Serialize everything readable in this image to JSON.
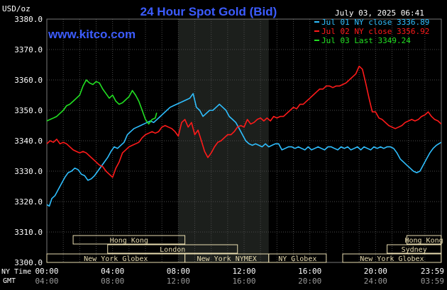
{
  "chart_data": {
    "type": "line",
    "title": "24 Hour Spot Gold (Bid)",
    "site": "www.kitco.com",
    "units_label": "USD/oz",
    "date_label": "July 03, 2025 06:41",
    "ylim": [
      3300,
      3380
    ],
    "y_ticks": [
      "3380.0",
      "3370.0",
      "3360.0",
      "3350.0",
      "3340.0",
      "3330.0",
      "3320.0",
      "3310.0",
      "3300.0"
    ],
    "x_ticks_ny": [
      "00:00",
      "04:00",
      "08:00",
      "12:00",
      "16:00",
      "20:00",
      "23:59"
    ],
    "x_ticks_gmt": [
      "04:00",
      "08:00",
      "12:00",
      "16:00",
      "20:00",
      "24:00",
      "03:59"
    ],
    "x_row_labels": {
      "ny": "NY Time",
      "gmt": "GMT"
    },
    "highlight_hours": [
      8.0,
      13.5
    ],
    "colors": {
      "background": "#000000",
      "plot": "#000000",
      "highlight": "#1c1f1c",
      "grid": "#4a4a4a",
      "axis_text": "#ffffff",
      "title": "#3c5cff",
      "market_box": "#e8dcb0",
      "market_text": "#e8dcb0"
    },
    "legend": {
      "placement": "top-right"
    },
    "series": [
      {
        "name": "Jul 01 NY close 3336.89",
        "color": "#2fbfff",
        "x": [
          0,
          0.15,
          0.3,
          0.5,
          0.7,
          0.9,
          1.1,
          1.3,
          1.5,
          1.7,
          1.9,
          2.1,
          2.3,
          2.5,
          2.7,
          2.9,
          3.1,
          3.3,
          3.5,
          3.7,
          3.9,
          4.1,
          4.3,
          4.5,
          4.7,
          4.9,
          5.1,
          5.3,
          5.5,
          5.7,
          5.9,
          6.1,
          6.3,
          6.5,
          6.7,
          6.9,
          7.1,
          7.3,
          7.5,
          7.7,
          7.9,
          8.1,
          8.3,
          8.5,
          8.7,
          8.9,
          9.1,
          9.3,
          9.5,
          9.7,
          9.9,
          10.1,
          10.3,
          10.5,
          10.7,
          10.9,
          11.1,
          11.3,
          11.5,
          11.7,
          11.9,
          12.1,
          12.3,
          12.5,
          12.7,
          12.9,
          13.1,
          13.3,
          13.5,
          13.7,
          13.9,
          14.1,
          14.3,
          14.5,
          14.7,
          14.9,
          15.1,
          15.3,
          15.5,
          15.7,
          15.9,
          16.1,
          16.3,
          16.5,
          16.7,
          16.9,
          17.1,
          17.3,
          17.5,
          17.7,
          17.9,
          18.1,
          18.3,
          18.5,
          18.7,
          18.9,
          19.1,
          19.3,
          19.5,
          19.7,
          19.9,
          20.1,
          20.3,
          20.5,
          20.7,
          20.9,
          21.1,
          21.3,
          21.5,
          21.7,
          21.9,
          22.1,
          22.3,
          22.5,
          22.7,
          22.9,
          23.1,
          23.3,
          23.5,
          23.7,
          23.99
        ],
        "values": [
          3319,
          3318.5,
          3321,
          3322,
          3324,
          3326,
          3328,
          3329.5,
          3330,
          3331,
          3330.5,
          3329,
          3328.5,
          3327,
          3327.5,
          3328.5,
          3330,
          3331.5,
          3333,
          3334.5,
          3336.5,
          3338,
          3337.5,
          3338.5,
          3339.5,
          3342,
          3343,
          3344,
          3344.5,
          3345,
          3345.5,
          3346,
          3346.5,
          3346,
          3347,
          3348,
          3349,
          3350,
          3351,
          3351.5,
          3352,
          3352.5,
          3353,
          3353.5,
          3354,
          3355.5,
          3351,
          3350,
          3348,
          3349,
          3350,
          3350,
          3351,
          3352,
          3351,
          3350,
          3348,
          3347,
          3346,
          3344,
          3342,
          3340,
          3339,
          3338.5,
          3339,
          3338.5,
          3338,
          3339,
          3338,
          3338.5,
          3339,
          3339,
          3337,
          3337.5,
          3338,
          3338,
          3337.5,
          3338,
          3337.5,
          3337,
          3338,
          3337,
          3337.5,
          3338,
          3337.5,
          3337,
          3338,
          3338,
          3337.5,
          3337,
          3338,
          3337.5,
          3338,
          3337,
          3337.5,
          3338,
          3337,
          3338,
          3337.5,
          3337,
          3338,
          3337.5,
          3338,
          3337.5,
          3338,
          3338,
          3337.5,
          3336,
          3334,
          3333,
          3332,
          3331,
          3330,
          3329.5,
          3330,
          3332,
          3334,
          3336,
          3337.5,
          3338.5,
          3339.5
        ]
      },
      {
        "name": "Jul 02 NY close 3356.92",
        "color": "#ff1a1a",
        "x": [
          0,
          0.2,
          0.4,
          0.6,
          0.8,
          1.0,
          1.2,
          1.4,
          1.6,
          1.8,
          2.0,
          2.2,
          2.4,
          2.6,
          2.8,
          3.0,
          3.2,
          3.4,
          3.6,
          3.8,
          4.0,
          4.2,
          4.4,
          4.6,
          4.8,
          5.0,
          5.2,
          5.4,
          5.6,
          5.8,
          6.0,
          6.2,
          6.4,
          6.6,
          6.8,
          7.0,
          7.2,
          7.4,
          7.6,
          7.8,
          8.0,
          8.2,
          8.4,
          8.6,
          8.8,
          9.0,
          9.2,
          9.4,
          9.6,
          9.8,
          10.0,
          10.2,
          10.4,
          10.6,
          10.8,
          11.0,
          11.2,
          11.4,
          11.6,
          11.8,
          12.0,
          12.2,
          12.4,
          12.6,
          12.8,
          13.0,
          13.2,
          13.4,
          13.6,
          13.8,
          14.0,
          14.2,
          14.4,
          14.6,
          14.8,
          15.0,
          15.2,
          15.4,
          15.6,
          15.8,
          16.0,
          16.2,
          16.4,
          16.6,
          16.8,
          17.0,
          17.2,
          17.4,
          17.6,
          17.8,
          18.0,
          18.2,
          18.4,
          18.6,
          18.8,
          19.0,
          19.2,
          19.4,
          19.6,
          19.8,
          20.0,
          20.2,
          20.4,
          20.6,
          20.8,
          21.0,
          21.2,
          21.4,
          21.6,
          21.8,
          22.0,
          22.2,
          22.4,
          22.6,
          22.8,
          23.0,
          23.2,
          23.4,
          23.6,
          23.8,
          23.99
        ],
        "values": [
          3339,
          3340,
          3339.5,
          3340.5,
          3339,
          3339.5,
          3339,
          3338,
          3337,
          3336.5,
          3336,
          3336.5,
          3336,
          3335,
          3334,
          3333,
          3332,
          3331.5,
          3330,
          3329,
          3328,
          3331,
          3333,
          3336,
          3337,
          3338,
          3338.5,
          3339,
          3339.5,
          3341,
          3342,
          3342.5,
          3343,
          3342.5,
          3343,
          3344.5,
          3345,
          3344.5,
          3344,
          3343,
          3341.5,
          3346,
          3347,
          3344.5,
          3346,
          3342,
          3343.5,
          3340,
          3336.5,
          3334.5,
          3336,
          3338,
          3339.5,
          3340,
          3341,
          3342,
          3342,
          3343,
          3344.5,
          3345,
          3344.5,
          3347,
          3345.5,
          3346,
          3347,
          3347.5,
          3346.5,
          3347.5,
          3346.5,
          3348,
          3347.5,
          3348,
          3348,
          3349,
          3350,
          3351,
          3350.5,
          3352,
          3352,
          3353,
          3354,
          3355,
          3356,
          3357,
          3357,
          3358,
          3358,
          3357.5,
          3358,
          3358,
          3358.5,
          3359,
          3360,
          3361,
          3362,
          3364.5,
          3363.5,
          3359,
          3354,
          3349.5,
          3349.5,
          3347.5,
          3347,
          3346,
          3345,
          3344.5,
          3344,
          3344.5,
          3345,
          3346,
          3346.5,
          3347,
          3346.5,
          3347,
          3348,
          3348.5,
          3349.5,
          3348,
          3347,
          3346.5,
          3345.5
        ]
      },
      {
        "name": "Jul 03 Last 3349.24",
        "color": "#22e022",
        "x": [
          0,
          0.2,
          0.4,
          0.6,
          0.8,
          1.0,
          1.2,
          1.4,
          1.6,
          1.8,
          2.0,
          2.2,
          2.4,
          2.6,
          2.8,
          3.0,
          3.2,
          3.4,
          3.6,
          3.8,
          4.0,
          4.2,
          4.4,
          4.6,
          4.8,
          5.0,
          5.2,
          5.4,
          5.6,
          5.8,
          6.0,
          6.2,
          6.4,
          6.6,
          6.68
        ],
        "values": [
          3346.5,
          3347,
          3347.5,
          3348,
          3349,
          3350,
          3351.5,
          3352,
          3353,
          3354,
          3355,
          3358,
          3360,
          3359,
          3358.5,
          3359.5,
          3359,
          3357,
          3355.5,
          3354,
          3355,
          3353,
          3352,
          3352.5,
          3353.5,
          3354.5,
          3356.5,
          3355,
          3353,
          3350,
          3347,
          3345.5,
          3347,
          3347.5,
          3349.2
        ]
      }
    ],
    "markets": [
      {
        "label": "Hong Kong",
        "start": 1.6,
        "end": 8.4,
        "row": 0
      },
      {
        "label": "Hong Kong",
        "start": 21.9,
        "end": 23.99,
        "row": 0
      },
      {
        "label": "London",
        "start": 3.7,
        "end": 11.6,
        "row": 1
      },
      {
        "label": "Sydney",
        "start": 20.7,
        "end": 23.99,
        "row": 1
      },
      {
        "label": "New York Globex",
        "start": 0.0,
        "end": 8.4,
        "row": 2
      },
      {
        "label": "New York NYMEX",
        "start": 8.4,
        "end": 13.5,
        "row": 2
      },
      {
        "label": "NY Globex",
        "start": 13.5,
        "end": 17.0,
        "row": 2
      },
      {
        "label": "New York Globex",
        "start": 18.0,
        "end": 23.99,
        "row": 2
      }
    ]
  }
}
